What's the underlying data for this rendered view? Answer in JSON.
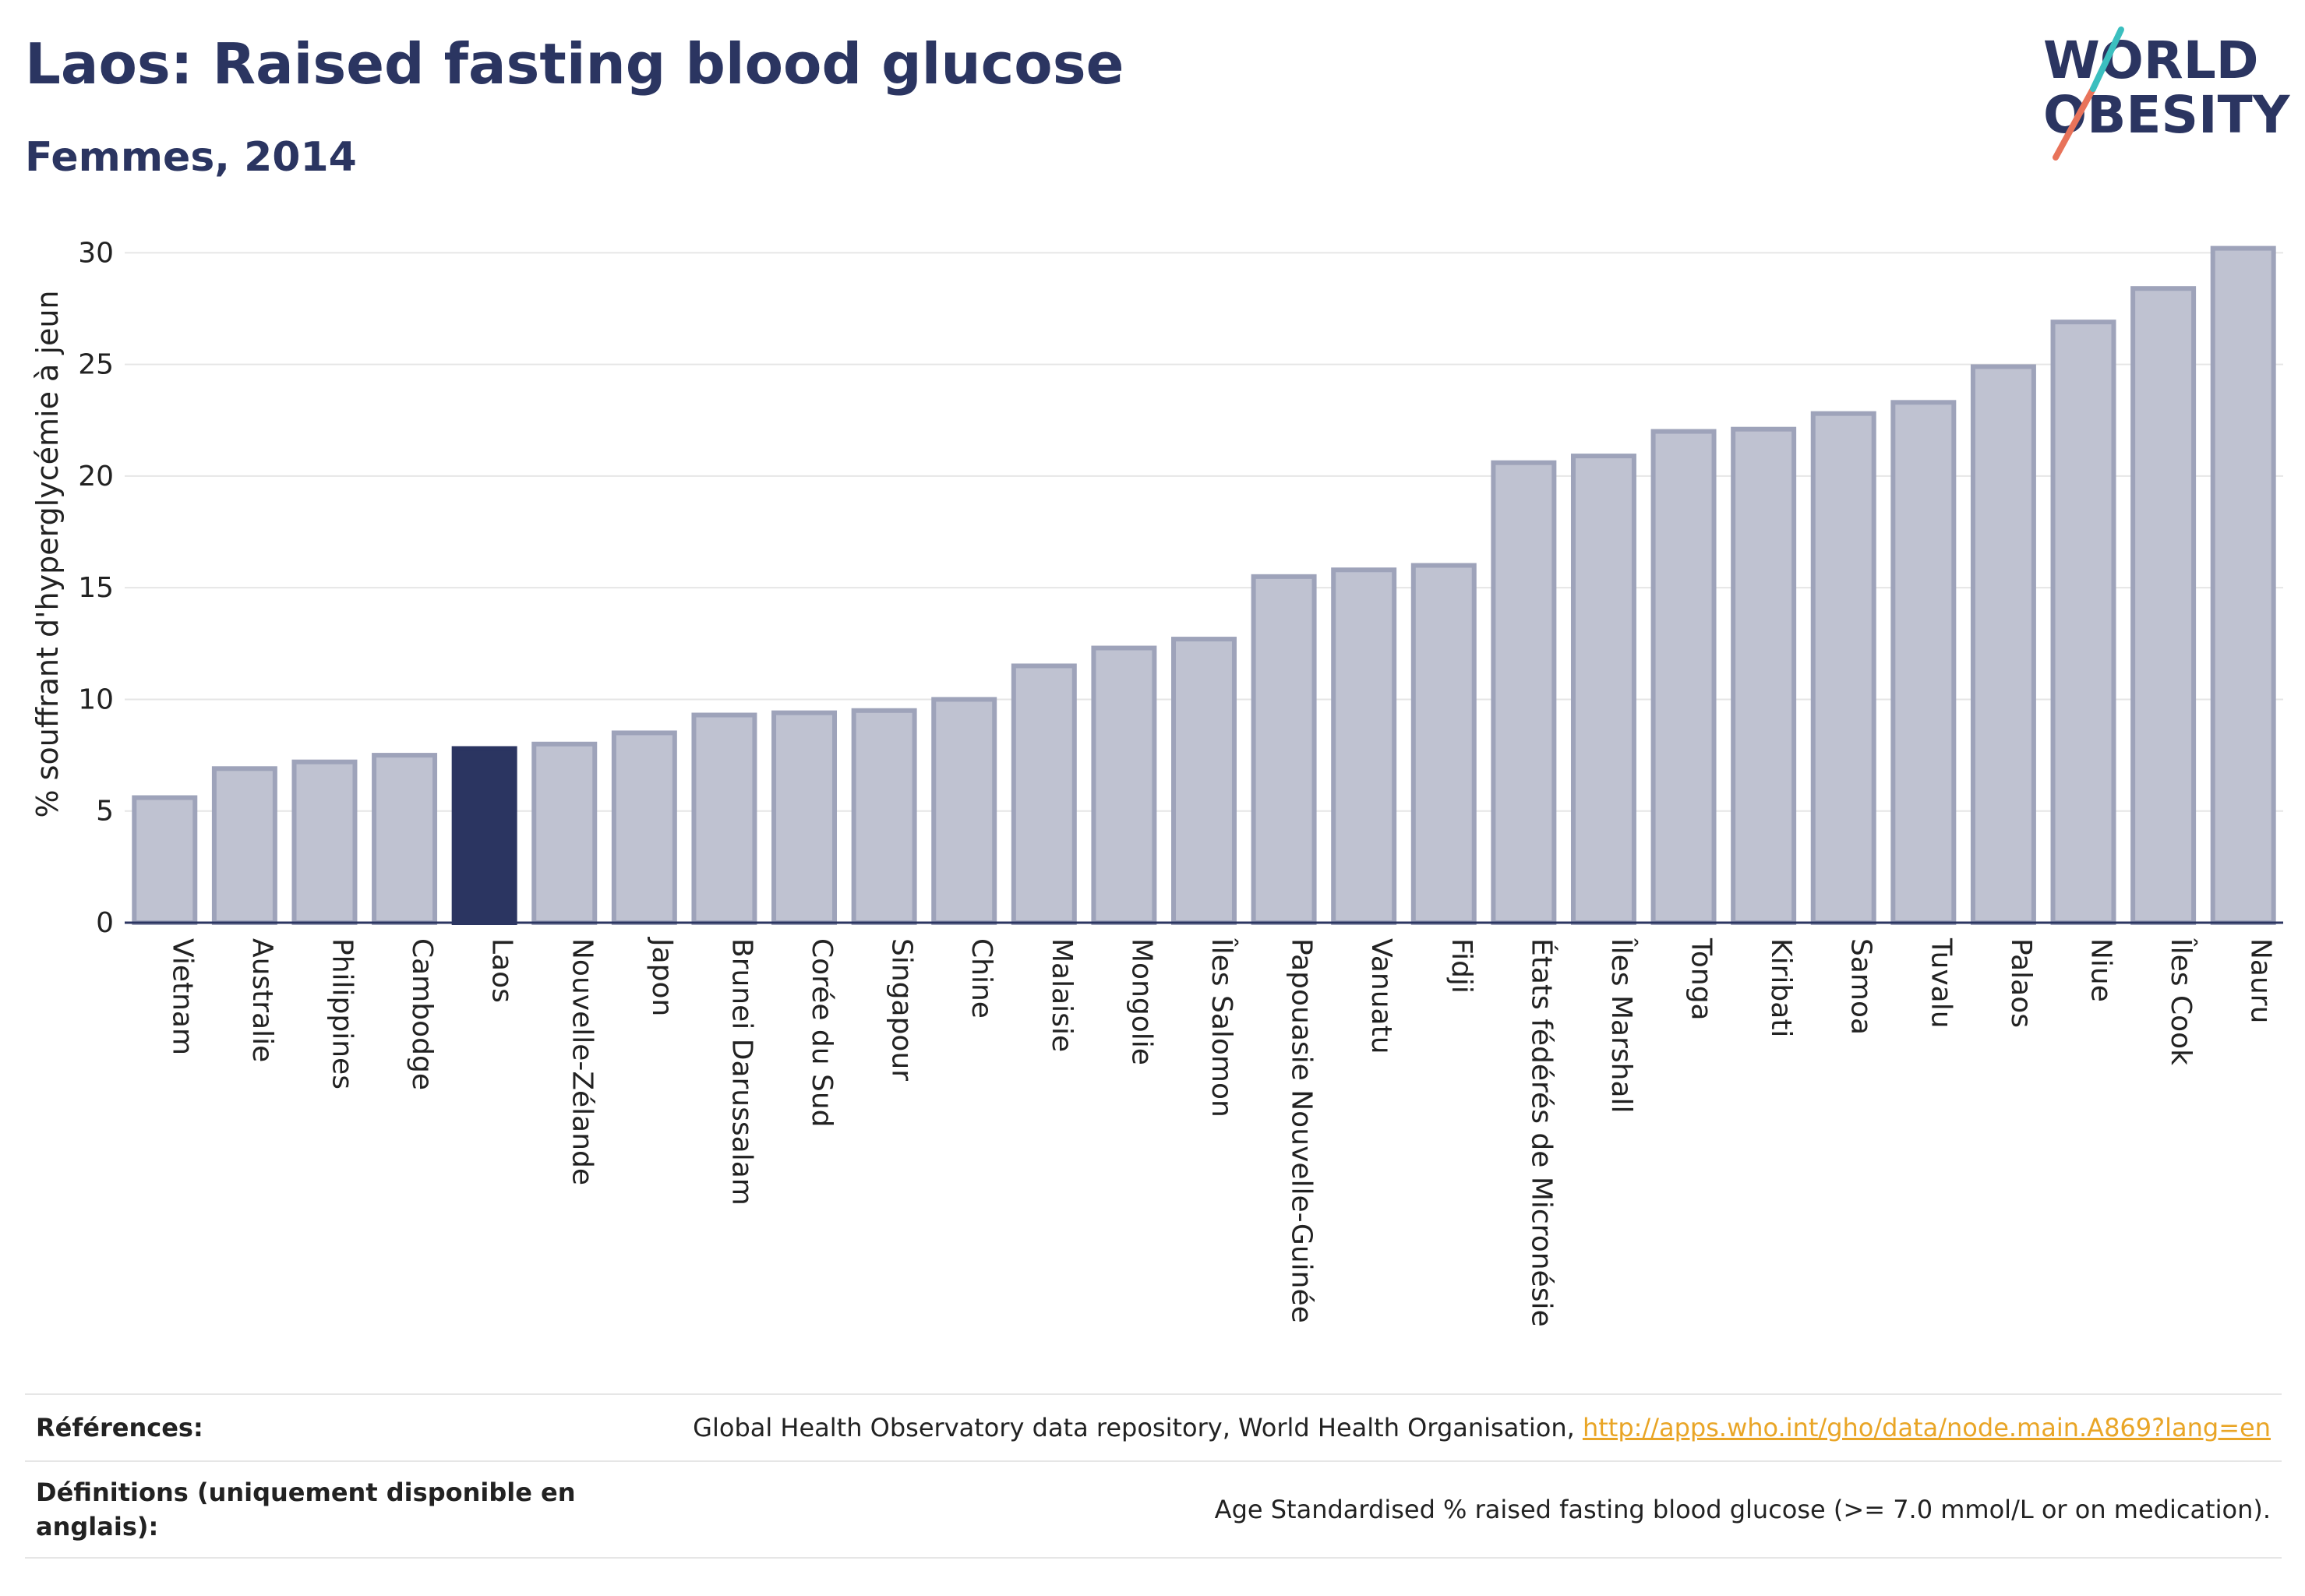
{
  "header": {
    "title": "Laos: Raised fasting blood glucose",
    "subtitle": "Femmes, 2014"
  },
  "logo": {
    "line1": "WORLD",
    "line2": "OBESITY",
    "colors": {
      "text": "#2b3561",
      "slash_coral": "#e8735a",
      "slash_teal": "#3bbfbf"
    }
  },
  "chart_data": {
    "type": "bar",
    "ylabel": "% souffrant d'hyperglycémie à jeun",
    "xlabel": "",
    "ylim": [
      0,
      30.5
    ],
    "yticks": [
      0,
      5,
      10,
      15,
      20,
      25,
      30
    ],
    "grid": true,
    "highlight": "Laos",
    "colors": {
      "bar_fill": "#bfc2d1",
      "bar_edge": "#9ea3ba",
      "highlight": "#2b3561",
      "grid": "#e6e6e6",
      "axis": "#2b3561"
    },
    "categories": [
      "Vietnam",
      "Australie",
      "Philippines",
      "Cambodge",
      "Laos",
      "Nouvelle-Zélande",
      "Japon",
      "Brunei Darussalam",
      "Corée du Sud",
      "Singapour",
      "Chine",
      "Malaisie",
      "Mongolie",
      "Îles Salomon",
      "Papouasie Nouvelle-Guinée",
      "Vanuatu",
      "Fidji",
      "États fédérés de Micronésie",
      "Îles Marshall",
      "Tonga",
      "Kiribati",
      "Samoa",
      "Tuvalu",
      "Palaos",
      "Niue",
      "Îles Cook",
      "Nauru"
    ],
    "values": [
      5.6,
      6.9,
      7.2,
      7.5,
      7.8,
      8.0,
      8.5,
      9.3,
      9.4,
      9.5,
      10.0,
      11.5,
      12.3,
      12.7,
      15.5,
      15.8,
      16.0,
      20.6,
      20.9,
      22.0,
      22.1,
      22.8,
      23.3,
      24.9,
      26.9,
      28.4,
      30.2
    ]
  },
  "references": {
    "refs_label": "Références:",
    "refs_text": "Global Health Observatory data repository, World Health Organisation, ",
    "refs_link": "http://apps.who.int/gho/data/node.main.A869?lang=en",
    "defs_label": "Définitions (uniquement disponible en anglais):",
    "defs_text": "Age Standardised % raised fasting blood glucose (>= 7.0 mmol/L or on medication)."
  }
}
